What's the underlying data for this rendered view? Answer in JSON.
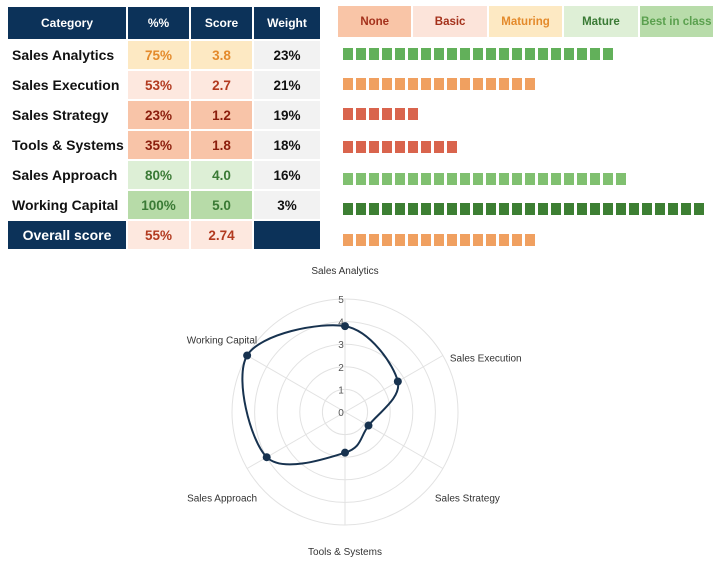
{
  "table": {
    "headers": {
      "category": "Category",
      "pct": "%%",
      "score": "Score",
      "weight": "Weight"
    },
    "rows": [
      {
        "category": "Sales Analytics",
        "pct": "75%",
        "score": "3.8",
        "weight": "23%",
        "pct_bg": "#fde9c3",
        "pct_color": "#e48a2b",
        "bar_count": 21,
        "bar_color": "#62b05a"
      },
      {
        "category": "Sales Execution",
        "pct": "53%",
        "score": "2.7",
        "weight": "21%",
        "pct_bg": "#fde8df",
        "pct_color": "#b23a1f",
        "bar_count": 15,
        "bar_color": "#f0a060"
      },
      {
        "category": "Sales Strategy",
        "pct": "23%",
        "score": "1.2",
        "weight": "19%",
        "pct_bg": "#f8c4a8",
        "pct_color": "#8b1d0c",
        "bar_count": 6,
        "bar_color": "#d9644d"
      },
      {
        "category": "Tools & Systems",
        "pct": "35%",
        "score": "1.8",
        "weight": "18%",
        "pct_bg": "#f8c4a8",
        "pct_color": "#8b1d0c",
        "bar_count": 9,
        "bar_color": "#d9644d"
      },
      {
        "category": "Sales Approach",
        "pct": "80%",
        "score": "4.0",
        "weight": "16%",
        "pct_bg": "#ddefd6",
        "pct_color": "#3a7a35",
        "bar_count": 22,
        "bar_color": "#80c070"
      },
      {
        "category": "Working Capital",
        "pct": "100%",
        "score": "5.0",
        "weight": "3%",
        "pct_bg": "#b7dba8",
        "pct_color": "#3a7a35",
        "bar_count": 28,
        "bar_color": "#3d7f33"
      }
    ],
    "overall": {
      "category": "Overall score",
      "pct": "55%",
      "score": "2.74",
      "weight": "",
      "pct_bg": "#fde8df",
      "pct_color": "#b23a1f",
      "bar_count": 15,
      "bar_color": "#f0a060"
    }
  },
  "legend": [
    {
      "label": "None",
      "bg": "#f9c5a7",
      "color": "#a4311b"
    },
    {
      "label": "Basic",
      "bg": "#fce4da",
      "color": "#a4311b"
    },
    {
      "label": "Maturing",
      "bg": "#fde9c3",
      "color": "#e48a2b"
    },
    {
      "label": "Mature",
      "bg": "#deefd6",
      "color": "#3a7a35"
    },
    {
      "label": "Best in class",
      "bg": "#b8dcaa",
      "color": "#5aa04e"
    }
  ],
  "chart_data": {
    "type": "radar",
    "axes": [
      "Sales Analytics",
      "Sales Execution",
      "Sales Strategy",
      "Tools & Systems",
      "Sales Approach",
      "Working Capital"
    ],
    "values": [
      3.8,
      2.7,
      1.2,
      1.8,
      4.0,
      5.0
    ],
    "range": [
      0,
      5
    ],
    "ticks": [
      "0",
      "1",
      "2",
      "3",
      "4",
      "5"
    ],
    "series_color": "#17324f"
  }
}
